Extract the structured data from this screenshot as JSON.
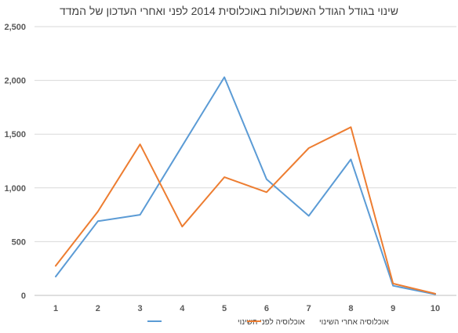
{
  "chart_data": {
    "type": "line",
    "title": "שינוי בגודל הגודל האשכולות באוכלוסית 2014 לפני ואחרי העדכון של המדד",
    "x": [
      "1",
      "2",
      "3",
      "4",
      "5",
      "6",
      "7",
      "8",
      "9",
      "10"
    ],
    "ylim": [
      0,
      2500
    ],
    "yticks": [
      0,
      500,
      1000,
      1500,
      2000,
      2500
    ],
    "ytick_labels": [
      "0",
      "500",
      "1,000",
      "1,500",
      "2,000",
      "2,500"
    ],
    "grid": true,
    "legend_position": "bottom",
    "series": [
      {
        "name": "אוכלוסיה לפני השינוי",
        "color": "#5B9BD5",
        "values": [
          175,
          690,
          750,
          1390,
          2030,
          1080,
          740,
          1265,
          90,
          10
        ]
      },
      {
        "name": "אוכלוסיה אחרי השינוי",
        "color": "#ED7D31",
        "values": [
          275,
          780,
          1405,
          640,
          1100,
          960,
          1370,
          1565,
          110,
          15
        ]
      }
    ]
  }
}
